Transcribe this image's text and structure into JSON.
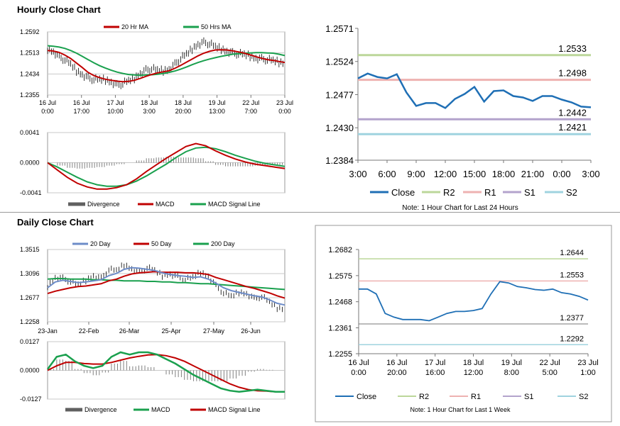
{
  "sections": {
    "hourly_title": "Hourly Close Chart",
    "daily_title": "Daily Close Chart"
  },
  "colors": {
    "ma20": "#c00000",
    "ma50": "#1aa04e",
    "blue_close": "#1f6fb5",
    "r2": "#bcd79a",
    "r1": "#eeb2b1",
    "s1": "#b3a3cc",
    "s2": "#9fd3df",
    "ma200": "#1aa04e",
    "ma20_daily": "#6d8cc8",
    "divergence": "#808080",
    "macd_signal_green": "#1aa04e"
  },
  "chart_data": [
    {
      "id": "hourly_price",
      "type": "line",
      "legend": [
        "20 Hr MA",
        "50 Hrs MA"
      ],
      "yticks": [
        "1.2592",
        "1.2513",
        "1.2434",
        "1.2355"
      ],
      "ylim": [
        1.2355,
        1.2592
      ],
      "xticks": [
        [
          "16 Jul",
          "0:00"
        ],
        [
          "16 Jul",
          "17:00"
        ],
        [
          "17 Jul",
          "10:00"
        ],
        [
          "18 Jul",
          "3:00"
        ],
        [
          "18 Jul",
          "20:00"
        ],
        [
          "19 Jul",
          "13:00"
        ],
        [
          "22 Jul",
          "7:00"
        ],
        [
          "23 Jul",
          "0:00"
        ]
      ],
      "price": [
        1.2528,
        1.2518,
        1.2497,
        1.2488,
        1.247,
        1.2446,
        1.2432,
        1.2418,
        1.2414,
        1.2413,
        1.2412,
        1.2404,
        1.2392,
        1.2398,
        1.2408,
        1.2418,
        1.2436,
        1.2448,
        1.2454,
        1.2448,
        1.2446,
        1.2452,
        1.247,
        1.2492,
        1.2508,
        1.2528,
        1.2546,
        1.2552,
        1.2548,
        1.2536,
        1.2528,
        1.252,
        1.2512,
        1.251,
        1.2507,
        1.2501,
        1.2494,
        1.249,
        1.2488,
        1.2484,
        1.2478,
        1.2475
      ],
      "ma20": [
        1.2522,
        1.252,
        1.2515,
        1.2505,
        1.2492,
        1.2475,
        1.2458,
        1.244,
        1.2428,
        1.242,
        1.2414,
        1.241,
        1.2407,
        1.2405,
        1.2406,
        1.241,
        1.2417,
        1.2425,
        1.2432,
        1.2438,
        1.2442,
        1.2446,
        1.2455,
        1.2466,
        1.2478,
        1.249,
        1.2502,
        1.2512,
        1.2519,
        1.2524,
        1.2525,
        1.2524,
        1.2521,
        1.2517,
        1.2512,
        1.2506,
        1.2499,
        1.2493,
        1.2488,
        1.2485,
        1.2481,
        1.2477
      ],
      "ma50": [
        1.254,
        1.2538,
        1.2535,
        1.253,
        1.2522,
        1.2512,
        1.25,
        1.2488,
        1.2476,
        1.2465,
        1.2456,
        1.2448,
        1.2441,
        1.2436,
        1.2432,
        1.243,
        1.2429,
        1.243,
        1.2431,
        1.2433,
        1.2436,
        1.244,
        1.2445,
        1.2452,
        1.246,
        1.2469,
        1.2477,
        1.2484,
        1.249,
        1.2495,
        1.25,
        1.2504,
        1.2508,
        1.251,
        1.2512,
        1.2513,
        1.2514,
        1.2514,
        1.2513,
        1.2512,
        1.2508,
        1.2503
      ]
    },
    {
      "id": "hourly_macd",
      "type": "line",
      "legend": [
        "Divergence",
        "MACD",
        "MACD Signal Line"
      ],
      "yticks": [
        "0.0041",
        "0.0000",
        "-0.0041"
      ],
      "ylim": [
        -0.0041,
        0.0041
      ],
      "macd": [
        0.0,
        -0.001,
        -0.002,
        -0.0028,
        -0.0033,
        -0.0036,
        -0.0036,
        -0.0034,
        -0.003,
        -0.0022,
        -0.0012,
        -0.0003,
        0.0006,
        0.0014,
        0.0022,
        0.0026,
        0.0023,
        0.0016,
        0.001,
        0.0005,
        0.0001,
        -0.0002,
        -0.0004,
        -0.0006,
        -0.0008
      ],
      "signal": [
        0.0,
        -0.0006,
        -0.0013,
        -0.002,
        -0.0026,
        -0.003,
        -0.0032,
        -0.0032,
        -0.003,
        -0.0025,
        -0.0018,
        -0.001,
        -0.0002,
        0.0007,
        0.0015,
        0.002,
        0.0021,
        0.0019,
        0.0015,
        0.001,
        0.0006,
        0.0002,
        -0.0001,
        -0.0003,
        -0.0005
      ]
    },
    {
      "id": "hourly_24h",
      "type": "line",
      "yticks": [
        "1.2571",
        "1.2524",
        "1.2477",
        "1.2430",
        "1.2384"
      ],
      "ylim": [
        1.2384,
        1.2571
      ],
      "xticks": [
        "3:00",
        "6:00",
        "9:00",
        "12:00",
        "15:00",
        "18:00",
        "21:00",
        "0:00",
        "3:00"
      ],
      "close": [
        1.25,
        1.2507,
        1.2502,
        1.25,
        1.2506,
        1.248,
        1.2461,
        1.2465,
        1.2465,
        1.2458,
        1.2471,
        1.2478,
        1.2488,
        1.2467,
        1.2482,
        1.2483,
        1.2475,
        1.2473,
        1.2468,
        1.2475,
        1.2475,
        1.247,
        1.2466,
        1.246,
        1.2459
      ],
      "levels": {
        "R2": 1.2533,
        "R1": 1.2498,
        "S1": 1.2442,
        "S2": 1.2421
      },
      "level_labels": {
        "R2": "1.2533",
        "R1": "1.2498",
        "S1": "1.2442",
        "S2": "1.2421"
      },
      "legend": [
        "Close",
        "R2",
        "R1",
        "S1",
        "S2"
      ],
      "note": "Note: 1 Hour Chart for Last 24 Hours"
    },
    {
      "id": "daily_price",
      "type": "line",
      "legend": [
        "20 Day",
        "50 Day",
        "200 Day"
      ],
      "yticks": [
        "1.3515",
        "1.3096",
        "1.2677",
        "1.2258"
      ],
      "ylim": [
        1.2258,
        1.3515
      ],
      "xticks": [
        "23-Jan",
        "22-Feb",
        "26-Mar",
        "25-Apr",
        "27-May",
        "26-Jun"
      ],
      "price": [
        1.288,
        1.303,
        1.301,
        1.296,
        1.29,
        1.298,
        1.306,
        1.301,
        1.317,
        1.315,
        1.325,
        1.318,
        1.312,
        1.32,
        1.315,
        1.306,
        1.309,
        1.304,
        1.299,
        1.303,
        1.312,
        1.305,
        1.288,
        1.276,
        1.27,
        1.277,
        1.275,
        1.266,
        1.27,
        1.26,
        1.25,
        1.248
      ],
      "ma20": [
        1.285,
        1.295,
        1.298,
        1.296,
        1.294,
        1.295,
        1.297,
        1.299,
        1.306,
        1.31,
        1.317,
        1.32,
        1.319,
        1.317,
        1.315,
        1.311,
        1.308,
        1.306,
        1.305,
        1.303,
        1.304,
        1.3,
        1.293,
        1.285,
        1.28,
        1.277,
        1.274,
        1.271,
        1.269,
        1.264,
        1.258,
        1.255
      ],
      "ma50": [
        1.275,
        1.279,
        1.282,
        1.285,
        1.287,
        1.288,
        1.29,
        1.292,
        1.297,
        1.3,
        1.305,
        1.309,
        1.311,
        1.312,
        1.313,
        1.312,
        1.312,
        1.312,
        1.311,
        1.311,
        1.31,
        1.308,
        1.303,
        1.299,
        1.295,
        1.291,
        1.287,
        1.284,
        1.28,
        1.276,
        1.271,
        1.267
      ],
      "ma200": [
        1.3,
        1.301,
        1.301,
        1.3,
        1.3,
        1.3,
        1.299,
        1.299,
        1.298,
        1.298,
        1.297,
        1.297,
        1.297,
        1.296,
        1.296,
        1.295,
        1.295,
        1.294,
        1.294,
        1.293,
        1.292,
        1.292,
        1.291,
        1.29,
        1.289,
        1.288,
        1.287,
        1.286,
        1.285,
        1.284,
        1.283,
        1.282
      ]
    },
    {
      "id": "daily_macd",
      "type": "line",
      "legend": [
        "Divergence",
        "MACD",
        "MACD Signal Line"
      ],
      "yticks": [
        "0.0127",
        "0.0000",
        "-0.0127"
      ],
      "ylim": [
        -0.0127,
        0.0127
      ],
      "macd": [
        0.0005,
        0.006,
        0.007,
        0.004,
        0.002,
        0.001,
        0.002,
        0.006,
        0.008,
        0.007,
        0.008,
        0.008,
        0.007,
        0.005,
        0.003,
        0.0005,
        -0.002,
        -0.004,
        -0.006,
        -0.008,
        -0.009,
        -0.0095,
        -0.009,
        -0.0085,
        -0.009,
        -0.0095,
        -0.0095
      ],
      "signal": [
        0.0,
        0.002,
        0.0035,
        0.0035,
        0.003,
        0.0028,
        0.0028,
        0.0035,
        0.0045,
        0.0055,
        0.0062,
        0.0068,
        0.007,
        0.0065,
        0.0055,
        0.004,
        0.002,
        0.0,
        -0.002,
        -0.004,
        -0.006,
        -0.0075,
        -0.0085,
        -0.009,
        -0.0092,
        -0.0095,
        -0.0095
      ]
    },
    {
      "id": "weekly_hourly",
      "type": "line",
      "yticks": [
        "1.2682",
        "1.2575",
        "1.2468",
        "1.2361",
        "1.2255"
      ],
      "ylim": [
        1.2255,
        1.2682
      ],
      "xticks": [
        [
          "16 Jul",
          "0:00"
        ],
        [
          "16 Jul",
          "20:00"
        ],
        [
          "17 Jul",
          "16:00"
        ],
        [
          "18 Jul",
          "12:00"
        ],
        [
          "19 Jul",
          "8:00"
        ],
        [
          "22 Jul",
          "5:00"
        ],
        [
          "23 Jul",
          "1:00"
        ]
      ],
      "close": [
        1.252,
        1.252,
        1.25,
        1.242,
        1.2405,
        1.2395,
        1.2395,
        1.2395,
        1.239,
        1.2405,
        1.242,
        1.2428,
        1.2428,
        1.2432,
        1.244,
        1.25,
        1.255,
        1.2545,
        1.253,
        1.2525,
        1.2518,
        1.2515,
        1.252,
        1.2505,
        1.25,
        1.249,
        1.2475
      ],
      "levels": {
        "R2": 1.2644,
        "R1": 1.2553,
        "S1": 1.2377,
        "S2": 1.2292
      },
      "level_labels": {
        "R2": "1.2644",
        "R1": "1.2553",
        "S1": "1.2377",
        "S2": "1.2292"
      },
      "legend": [
        "Close",
        "R2",
        "R1",
        "S1",
        "S2"
      ],
      "note": "Note: 1 Hour Chart for Last 1 Week"
    }
  ]
}
